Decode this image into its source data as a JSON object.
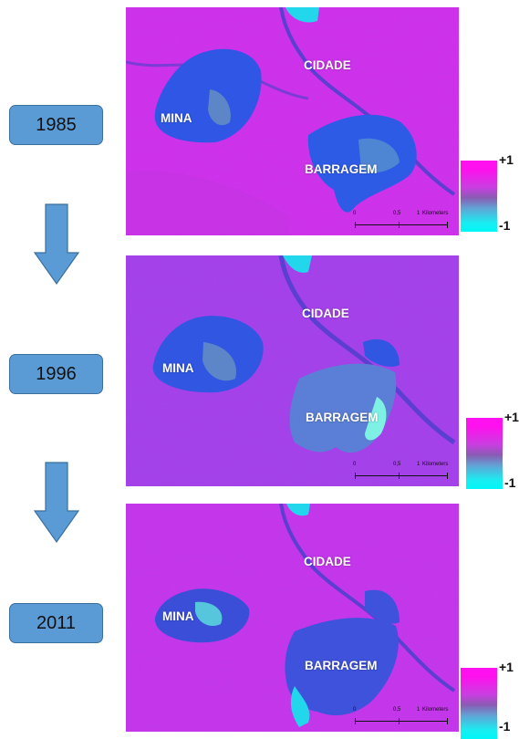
{
  "years": [
    "1985",
    "1996",
    "2011"
  ],
  "map_labels": {
    "city": "CIDADE",
    "mine": "MINA",
    "dam": "BARRAGEM"
  },
  "scale_bar": {
    "ticks": [
      "0",
      "0,5",
      "1"
    ],
    "unit": "Kilometers"
  },
  "legend": {
    "max_label": "+1",
    "min_label": "-1",
    "colors": {
      "max": "#ff10ee",
      "mid": "#8a5bb4",
      "min": "#00f6f6"
    }
  },
  "arrow_color": "#5b9bd5",
  "icons": [
    "down-arrow-icon"
  ]
}
